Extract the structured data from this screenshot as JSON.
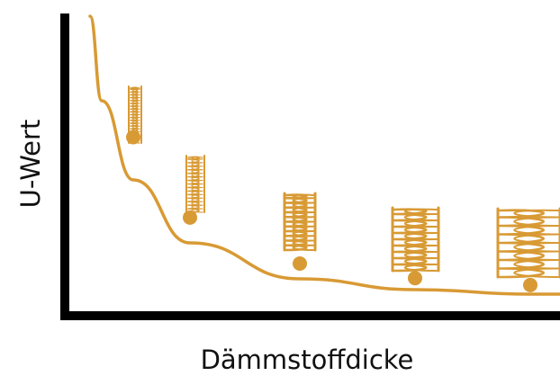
{
  "chart_data": {
    "type": "line",
    "title": "",
    "xlabel": "Dämmstoffdicke",
    "ylabel": "U-Wert",
    "x_ticks": "none",
    "y_ticks": "none",
    "grid": false,
    "legend": "none",
    "series": [
      {
        "style": "curve-with-markers",
        "x": [
          1,
          2,
          3,
          4,
          5
        ],
        "y": [
          0.5,
          0.268,
          0.135,
          0.093,
          0.073
        ]
      }
    ],
    "annotations": "insulation-layer icons of increasing thickness above each data point",
    "colors": {
      "curve": "#d89a34",
      "marker": "#d89a34",
      "insulation": "#d89a34",
      "axis": "#000000",
      "text": "#111111"
    }
  }
}
